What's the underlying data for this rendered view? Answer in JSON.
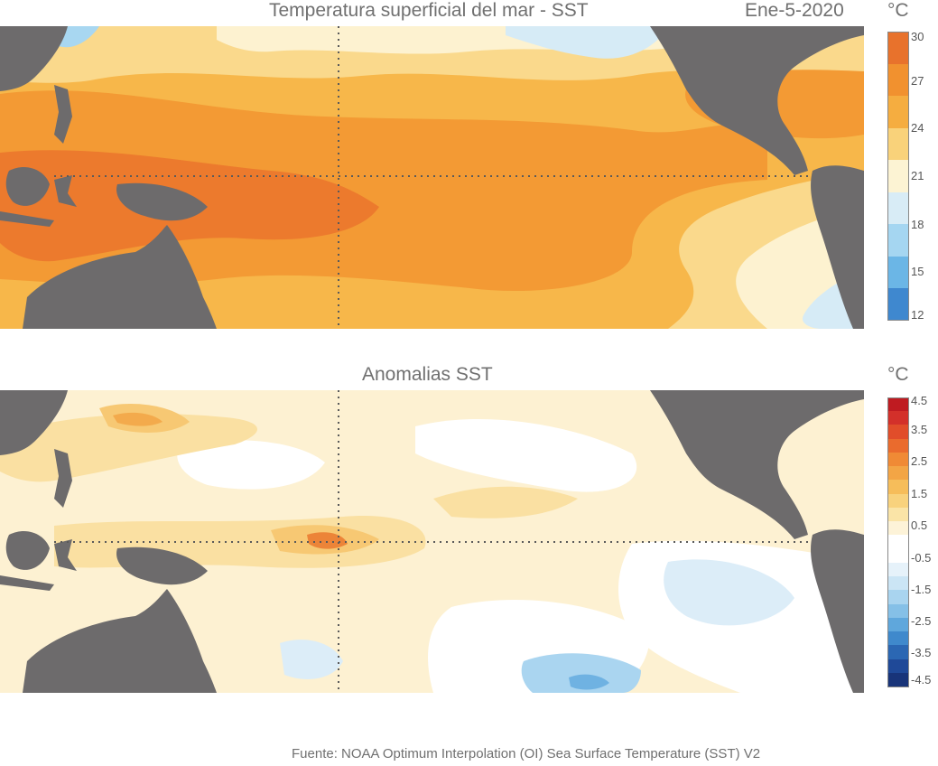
{
  "top_panel": {
    "title": "Temperatura superficial del mar - SST",
    "date": "Ene-5-2020",
    "unit": "°C",
    "colorbar": {
      "ticks": [
        "30",
        "27",
        "24",
        "21",
        "18",
        "15",
        "12"
      ],
      "colors": [
        "#e8722c",
        "#f1912f",
        "#f5ad40",
        "#f9d27a",
        "#fcf3d3",
        "#d8ecf6",
        "#a5d6f1",
        "#6bb6e6",
        "#3f88cf"
      ]
    },
    "palette": {
      "land": "#6d6b6c",
      "warm_pool": "#ec7a2d",
      "warm": "#f39a34",
      "mid": "#f7b74a",
      "mild": "#fad98c",
      "cool": "#fdf2d0",
      "cold": "#d6ebf6",
      "colder": "#a8d7f1"
    }
  },
  "bottom_panel": {
    "title": "Anomalias SST",
    "unit": "°C",
    "colorbar": {
      "ticks": [
        "4.5",
        "3.5",
        "2.5",
        "1.5",
        "0.5",
        "-0.5",
        "-1.5",
        "-2.5",
        "-3.5",
        "-4.5"
      ],
      "colors": [
        "#bf1b21",
        "#d3302a",
        "#e14d2a",
        "#ea6b2d",
        "#f08a35",
        "#f3a545",
        "#f6bd5a",
        "#f8d27d",
        "#fae4a7",
        "#fdf3d8",
        "#ffffff",
        "#ffffff",
        "#e6f2fa",
        "#cbe5f5",
        "#a9d4ef",
        "#85c0e7",
        "#5fa7dc",
        "#3f89cc",
        "#2b67b3",
        "#1f4998",
        "#183479"
      ]
    },
    "palette": {
      "land": "#6d6b6c",
      "base": "#fdf1d2",
      "pos1": "#fae0a2",
      "pos2": "#f7c873",
      "pos3": "#f3aa4c",
      "pos4": "#ec8438",
      "white": "#ffffff",
      "neg1": "#dcedf8",
      "neg2": "#aad5f0",
      "neg3": "#6fb2e2"
    }
  },
  "source": "Fuente: NOAA Optimum Interpolation (OI) Sea Surface Temperature (SST) V2"
}
